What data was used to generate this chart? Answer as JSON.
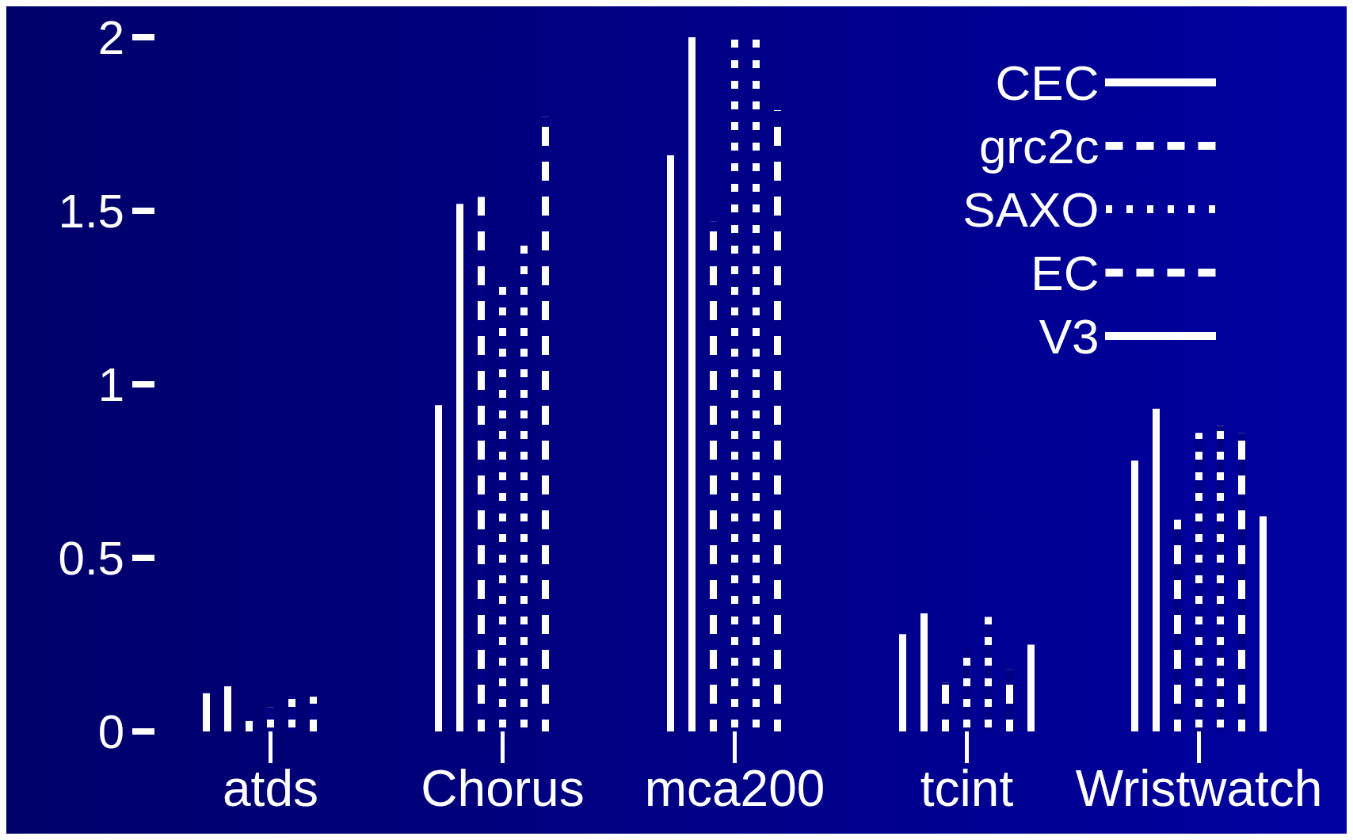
{
  "chart_data": {
    "type": "bar",
    "categories": [
      "atds",
      "Chorus",
      "mca200",
      "tcint",
      "Wristwatch"
    ],
    "ylim": [
      0,
      2
    ],
    "yticks": [
      0,
      0.5,
      1,
      1.5,
      2
    ],
    "grid": false,
    "legend": "top right",
    "series": [
      {
        "color": "#ffffff",
        "line_style": "solid",
        "values": [
          0.11,
          0.94,
          1.66,
          0.28,
          0.78
        ]
      },
      {
        "name": "CEC",
        "color": "#ffffff",
        "line_style": "solid",
        "values": [
          0.13,
          1.52,
          2.0,
          0.34,
          0.93
        ]
      },
      {
        "name": "grc2c",
        "color": "#ffffff",
        "line_style": "dashed",
        "values": [
          0.03,
          1.54,
          1.47,
          0.14,
          0.61
        ]
      },
      {
        "name": "SAXO",
        "color": "#ffffff",
        "line_style": "dotted",
        "values": [
          0.07,
          1.29,
          2.0,
          0.24,
          0.86
        ]
      },
      {
        "color": "#ffffff",
        "line_style": "dotted",
        "values": [
          0.1,
          1.42,
          2.0,
          0.33,
          0.88
        ]
      },
      {
        "name": "EC",
        "color": "#ffffff",
        "line_style": "dashed",
        "values": [
          0.1,
          1.77,
          1.79,
          0.18,
          0.86
        ]
      },
      {
        "name": "V3",
        "color": "#ffffff",
        "line_style": "solid",
        "values": [
          null,
          null,
          null,
          0.25,
          0.62
        ]
      }
    ]
  }
}
